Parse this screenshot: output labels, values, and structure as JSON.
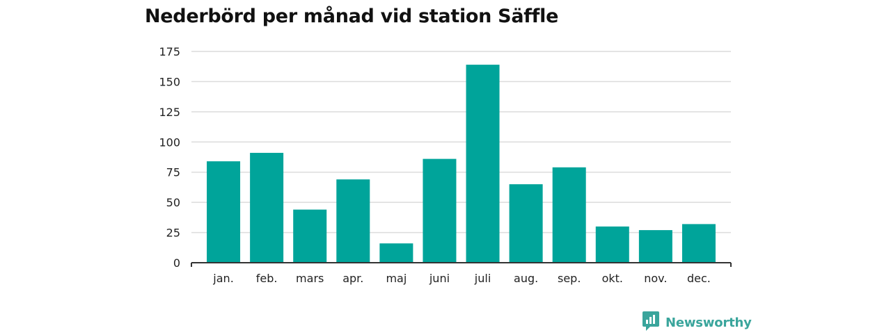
{
  "chart_data": {
    "type": "bar",
    "title": "Nederbörd per månad vid station Säffle",
    "categories": [
      "jan.",
      "feb.",
      "mars",
      "apr.",
      "maj",
      "juni",
      "juli",
      "aug.",
      "sep.",
      "okt.",
      "nov.",
      "dec."
    ],
    "values": [
      84,
      91,
      44,
      69,
      16,
      86,
      164,
      65,
      79,
      30,
      27,
      32
    ],
    "ylim": [
      0,
      175
    ],
    "yticks": [
      0,
      25,
      50,
      75,
      100,
      125,
      150,
      175
    ],
    "xlabel": "",
    "ylabel": "",
    "grid": true,
    "bar_color": "#00a49a"
  },
  "brand": {
    "name": "Newsworthy",
    "icon": "newsworthy-logo-icon",
    "color": "#3aa59c"
  }
}
